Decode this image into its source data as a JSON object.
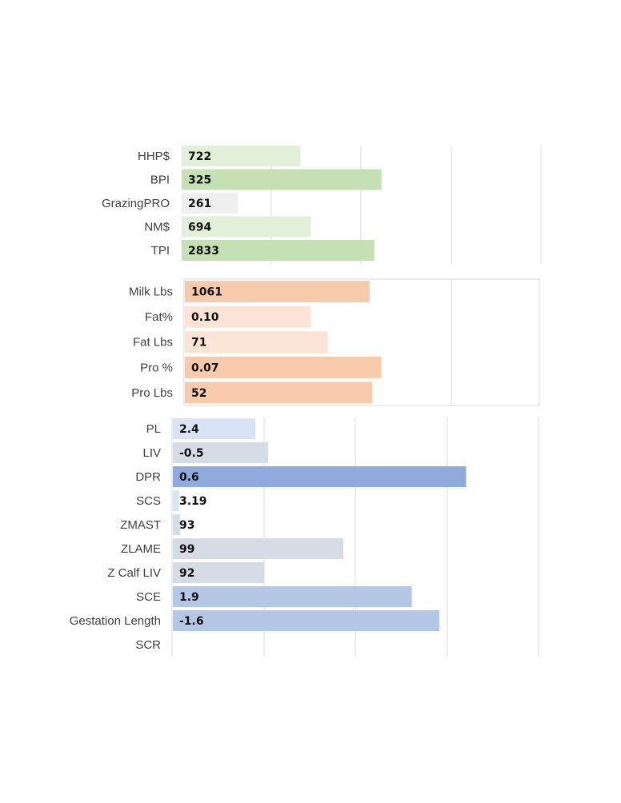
{
  "chart_data": [
    {
      "type": "bar",
      "orientation": "horizontal",
      "group": "index",
      "categories": [
        "HHP$",
        "BPI",
        "GrazingPRO",
        "NM$",
        "TPI"
      ],
      "value_labels": [
        "722",
        "325",
        "261",
        "694",
        "2833"
      ],
      "relative_bar_levels": [
        0.33,
        0.555,
        0.157,
        0.358,
        0.535
      ],
      "colors": [
        "#e2efd9",
        "#c5e0b3",
        "#efefef",
        "#e2efd9",
        "#c5e0b3"
      ],
      "gridlines": true,
      "frame": false
    },
    {
      "type": "bar",
      "orientation": "horizontal",
      "group": "production",
      "categories": [
        "Milk Lbs",
        "Fat%",
        "Fat Lbs",
        "Pro %",
        "Pro Lbs"
      ],
      "value_labels": [
        "1061",
        "0.10",
        "71",
        "0.07",
        "52"
      ],
      "relative_bar_levels": [
        0.52,
        0.355,
        0.402,
        0.553,
        0.527
      ],
      "colors": [
        "#f7caac",
        "#fbe4d5",
        "#fbe4d5",
        "#f7caac",
        "#f7caac"
      ],
      "gridlines": true,
      "frame": true
    },
    {
      "type": "bar",
      "orientation": "horizontal",
      "group": "health",
      "categories": [
        "PL",
        "LIV",
        "DPR",
        "SCS",
        "ZMAST",
        "ZLAME",
        "Z Calf LIV",
        "SCE",
        "Gestation Length",
        "SCR"
      ],
      "value_labels": [
        "2.4",
        "-0.5",
        "0.6",
        "3.19",
        "93",
        "99",
        "92",
        "1.9",
        "-1.6",
        ""
      ],
      "relative_bar_levels": [
        0.225,
        0.26,
        0.8,
        0.017,
        0.02,
        0.465,
        0.25,
        0.652,
        0.727,
        0
      ],
      "colors": [
        "#dae3f3",
        "#d6dce5",
        "#8faadc",
        "#dae3f3",
        "#d6dce5",
        "#d6dce5",
        "#d6dce5",
        "#b4c7e7",
        "#b4c7e7",
        "#ffffff"
      ],
      "gridlines": true,
      "frame": false
    }
  ]
}
